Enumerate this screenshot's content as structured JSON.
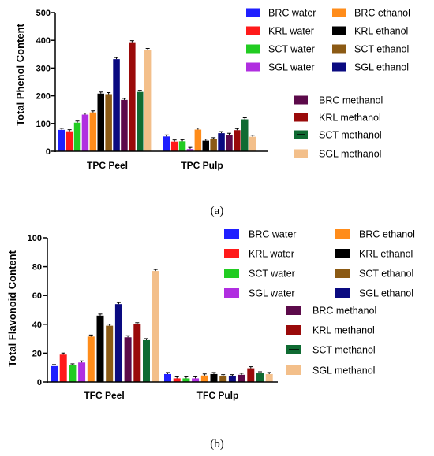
{
  "colors": {
    "BRC water": "#1f1fff",
    "BRC ethanol": "#ff8c1a",
    "KRL water": "#ff1a1a",
    "KRL ethanol": "#000000",
    "SCT water": "#22cc22",
    "SCT ethanol": "#8b5a14",
    "SGL water": "#b02ee0",
    "SGL ethanol": "#0a0a80",
    "BRC methanol": "#5c0a4a",
    "KRL methanol": "#9a0a0a",
    "SCT methanol": "#0f6b32",
    "SGL methanol": "#f3bf8a"
  },
  "chart_data": [
    {
      "type": "bar",
      "caption": "(a)",
      "ylabel": "Total Phenol Content",
      "ylim": [
        0,
        500
      ],
      "yticks": [
        "0",
        "100",
        "200",
        "300",
        "400",
        "500"
      ],
      "categories": [
        "TPC Peel",
        "TPC Pulp"
      ],
      "legend": {
        "col1": [
          "BRC water",
          "KRL water",
          "SCT water",
          "SGL water"
        ],
        "col2": [
          "BRC ethanol",
          "KRL ethanol",
          "SCT ethanol",
          "SGL ethanol"
        ],
        "col3": [
          "BRC methanol",
          "KRL methanol",
          "SCT methanol",
          "SGL methanol"
        ]
      },
      "series": [
        {
          "name": "BRC water",
          "values": [
            77,
            53
          ]
        },
        {
          "name": "KRL water",
          "values": [
            72,
            35
          ]
        },
        {
          "name": "SCT water",
          "values": [
            103,
            36
          ]
        },
        {
          "name": "SGL water",
          "values": [
            132,
            8
          ]
        },
        {
          "name": "BRC ethanol",
          "values": [
            140,
            78
          ]
        },
        {
          "name": "KRL ethanol",
          "values": [
            208,
            38
          ]
        },
        {
          "name": "SCT ethanol",
          "values": [
            206,
            43
          ]
        },
        {
          "name": "SGL ethanol",
          "values": [
            332,
            65
          ]
        },
        {
          "name": "BRC methanol",
          "values": [
            185,
            59
          ]
        },
        {
          "name": "KRL methanol",
          "values": [
            393,
            76
          ]
        },
        {
          "name": "SCT methanol",
          "values": [
            214,
            115
          ]
        },
        {
          "name": "SGL methanol",
          "values": [
            365,
            52
          ]
        }
      ]
    },
    {
      "type": "bar",
      "caption": "(b)",
      "ylabel": "Total Flavonoid Content",
      "ylim": [
        0,
        100
      ],
      "yticks": [
        "0",
        "20",
        "40",
        "60",
        "80",
        "100"
      ],
      "categories": [
        "TFC Peel",
        "TFC Pulp"
      ],
      "legend": {
        "col1": [
          "BRC water",
          "KRL water",
          "SCT water",
          "SGL water"
        ],
        "col2": [
          "BRC ethanol",
          "KRL ethanol",
          "SCT ethanol",
          "SGL ethanol"
        ],
        "col3": [
          "BRC methanol",
          "KRL methanol",
          "SCT methanol",
          "SGL methanol"
        ]
      },
      "series": [
        {
          "name": "BRC water",
          "values": [
            11,
            5.5
          ]
        },
        {
          "name": "KRL water",
          "values": [
            19,
            2.5
          ]
        },
        {
          "name": "SCT water",
          "values": [
            11.5,
            2.5
          ]
        },
        {
          "name": "SGL water",
          "values": [
            13.5,
            2.5
          ]
        },
        {
          "name": "BRC ethanol",
          "values": [
            31.5,
            4.5
          ]
        },
        {
          "name": "KRL ethanol",
          "values": [
            46,
            5.5
          ]
        },
        {
          "name": "SCT ethanol",
          "values": [
            39,
            4
          ]
        },
        {
          "name": "SGL ethanol",
          "values": [
            54,
            4
          ]
        },
        {
          "name": "BRC methanol",
          "values": [
            31,
            5
          ]
        },
        {
          "name": "KRL methanol",
          "values": [
            40,
            9.5
          ]
        },
        {
          "name": "SCT methanol",
          "values": [
            29,
            6
          ]
        },
        {
          "name": "SGL methanol",
          "values": [
            77,
            5.5
          ]
        }
      ]
    }
  ]
}
